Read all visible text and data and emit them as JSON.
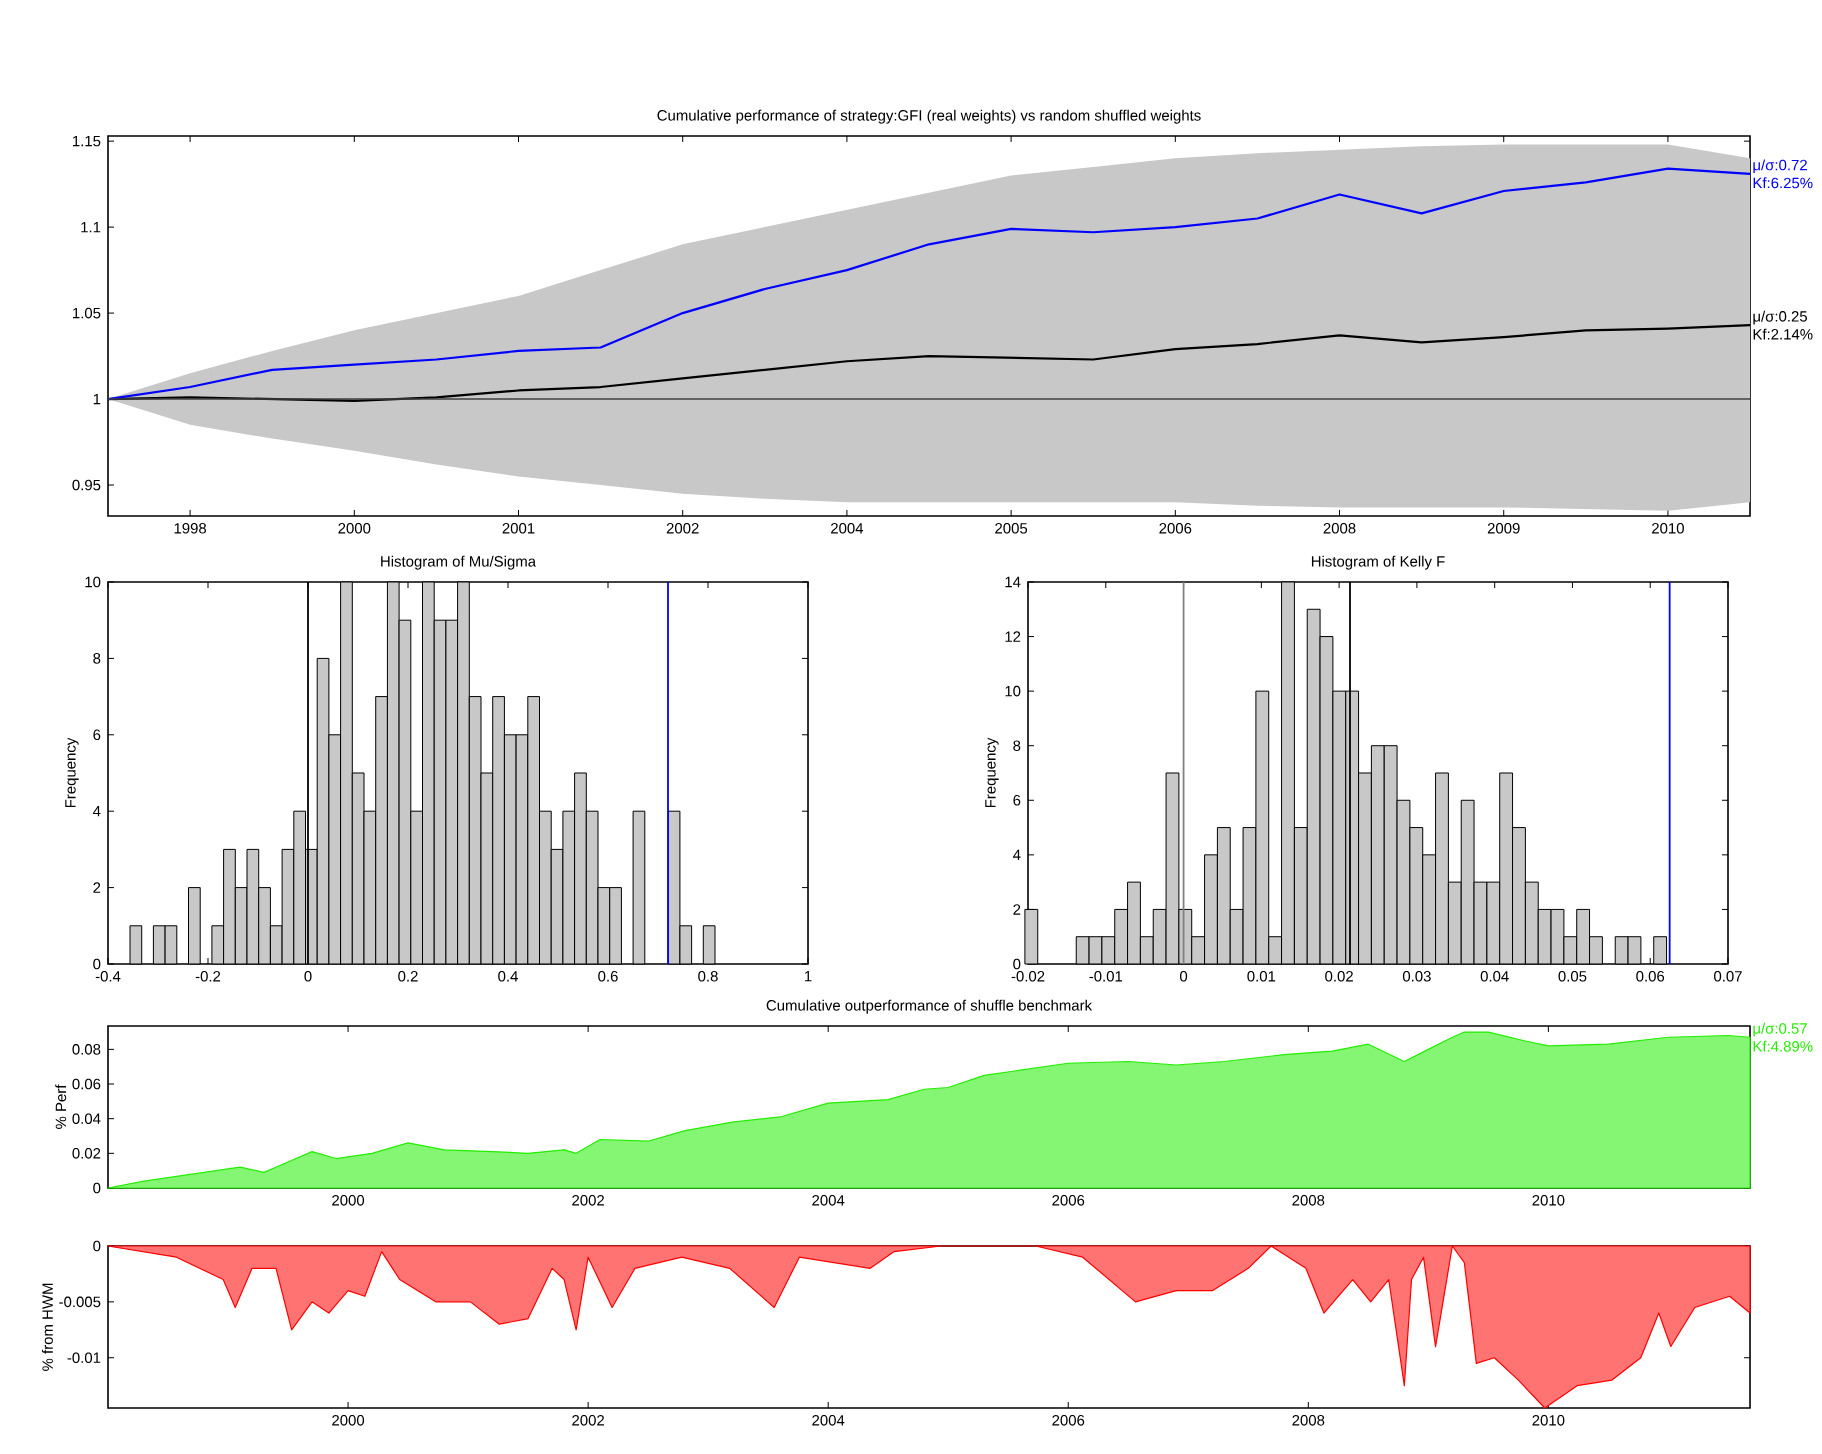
{
  "chart_data": [
    {
      "type": "line",
      "title": "Cumulative performance of strategy:GFI (real weights) vs random shuffled weights",
      "categories": [
        null,
        "1998",
        null,
        "2000",
        null,
        "2001",
        null,
        "2002",
        null,
        "2004",
        null,
        "2005",
        null,
        "2006",
        null,
        "2008",
        null,
        "2009",
        null,
        "2010",
        null
      ],
      "ylim": [
        0.932,
        1.153
      ],
      "yticks": [
        0.95,
        1,
        1.05,
        1.1,
        1.15
      ],
      "ref_lines": [
        {
          "axis": "y",
          "value": 1,
          "color": "#404040"
        }
      ],
      "series": [
        {
          "name": "μ/σ:0.25 Kf:2.14%",
          "color": "#000000",
          "values": [
            1.0,
            1.001,
            1.0,
            0.999,
            1.001,
            1.005,
            1.007,
            1.012,
            1.017,
            1.022,
            1.025,
            1.024,
            1.023,
            1.029,
            1.032,
            1.037,
            1.033,
            1.036,
            1.04,
            1.041,
            1.043
          ],
          "lower": [
            1.0,
            0.985,
            0.977,
            0.97,
            0.962,
            0.955,
            0.95,
            0.945,
            0.942,
            0.94,
            0.94,
            0.94,
            0.94,
            0.94,
            0.938,
            0.937,
            0.937,
            0.937,
            0.936,
            0.935,
            0.94
          ],
          "upper": [
            1.0,
            1.015,
            1.028,
            1.04,
            1.05,
            1.06,
            1.075,
            1.09,
            1.1,
            1.11,
            1.12,
            1.13,
            1.135,
            1.14,
            1.143,
            1.145,
            1.147,
            1.148,
            1.148,
            1.148,
            1.14
          ]
        },
        {
          "name": "μ/σ:0.72 Kf:6.25%",
          "color": "#0000ff",
          "values": [
            1.0,
            1.007,
            1.017,
            1.02,
            1.023,
            1.028,
            1.03,
            1.05,
            1.064,
            1.075,
            1.09,
            1.099,
            1.097,
            1.1,
            1.105,
            1.119,
            1.108,
            1.121,
            1.126,
            1.134,
            1.131
          ]
        }
      ]
    },
    {
      "type": "histogram",
      "title": "Histogram of Mu/Sigma",
      "ylabel": "Frequency",
      "xlim": [
        -0.4,
        1
      ],
      "ylim": [
        0,
        10
      ],
      "xticks": [
        -0.4,
        -0.2,
        0,
        0.2,
        0.4,
        0.6,
        0.8,
        1
      ],
      "yticks": [
        0,
        2,
        4,
        6,
        8,
        10
      ],
      "ref_lines": [
        {
          "axis": "x",
          "value": 0,
          "color": "#000000"
        },
        {
          "axis": "x",
          "value": 0.72,
          "color": "#0000ff"
        }
      ],
      "color": "#c8c8c8",
      "bins": [
        -0.356,
        -0.3326,
        -0.3092,
        -0.2858,
        -0.2624,
        -0.239,
        -0.2156,
        -0.1922,
        -0.1688,
        -0.1454,
        -0.122,
        -0.0986,
        -0.0752,
        -0.0518,
        -0.0284,
        -0.005,
        0.0184,
        0.0418,
        0.0652,
        0.0886,
        0.112,
        0.1354,
        0.1588,
        0.1822,
        0.2056,
        0.229,
        0.2524,
        0.2758,
        0.2992,
        0.3226,
        0.346,
        0.3694,
        0.3928,
        0.4162,
        0.4396,
        0.463,
        0.4864,
        0.5098,
        0.5332,
        0.5566,
        0.58,
        0.6034,
        0.6268,
        0.6502,
        0.6736,
        0.697,
        0.7204,
        0.7438,
        0.7672,
        0.7906,
        0.814
      ],
      "values": [
        1,
        0,
        1,
        1,
        0,
        2,
        0,
        1,
        3,
        2,
        3,
        2,
        1,
        3,
        4,
        3,
        8,
        6,
        10,
        5,
        4,
        7,
        10,
        9,
        4,
        10,
        9,
        9,
        10,
        7,
        5,
        7,
        6,
        6,
        7,
        4,
        3,
        4,
        5,
        4,
        2,
        2,
        0,
        4,
        0,
        0,
        4,
        1,
        0,
        1
      ]
    },
    {
      "type": "histogram",
      "title": "Histogram of Kelly F",
      "ylabel": "Frequency",
      "xlim": [
        -0.02,
        0.07
      ],
      "ylim": [
        0,
        14
      ],
      "xticks": [
        -0.02,
        -0.01,
        0,
        0.01,
        0.02,
        0.03,
        0.04,
        0.05,
        0.06,
        0.07
      ],
      "yticks": [
        0,
        2,
        4,
        6,
        8,
        10,
        12,
        14
      ],
      "ref_lines": [
        {
          "axis": "x",
          "value": 0,
          "color": "#808080"
        },
        {
          "axis": "x",
          "value": 0.0214,
          "color": "#000000"
        },
        {
          "axis": "x",
          "value": 0.0625,
          "color": "#0000ff"
        }
      ],
      "color": "#c8c8c8",
      "bins": [
        -0.0204,
        -0.01875,
        -0.0171,
        -0.01545,
        -0.0138,
        -0.01215,
        -0.0105,
        -0.00885,
        -0.0072,
        -0.00555,
        -0.0039,
        -0.00225,
        -0.0006,
        0.00105,
        0.0027,
        0.00435,
        0.006,
        0.00765,
        0.0093,
        0.01095,
        0.0126,
        0.01425,
        0.0159,
        0.01755,
        0.0192,
        0.02085,
        0.0225,
        0.02415,
        0.0258,
        0.02745,
        0.0291,
        0.03075,
        0.0324,
        0.03405,
        0.0357,
        0.03735,
        0.039,
        0.04065,
        0.0423,
        0.04395,
        0.0456,
        0.04725,
        0.0489,
        0.05055,
        0.0522,
        0.05385,
        0.0555,
        0.05715,
        0.0588,
        0.06045,
        0.0621
      ],
      "values": [
        2,
        0,
        0,
        0,
        1,
        1,
        1,
        2,
        3,
        1,
        2,
        7,
        2,
        1,
        4,
        5,
        2,
        5,
        10,
        1,
        14,
        5,
        13,
        12,
        10,
        10,
        7,
        8,
        8,
        6,
        5,
        4,
        7,
        3,
        6,
        3,
        3,
        7,
        5,
        3,
        2,
        2,
        1,
        2,
        1,
        0,
        1,
        1,
        0,
        1
      ]
    },
    {
      "type": "area",
      "title": "Cumulative outperformance of shuffle benchmark",
      "ylabel": "% Perf",
      "xlim": [
        1998.0,
        2011.68
      ],
      "ylim": [
        0,
        0.0935
      ],
      "xticks": [
        2000,
        2002,
        2004,
        2006,
        2008,
        2010
      ],
      "yticks": [
        0,
        0.02,
        0.04,
        0.06,
        0.08
      ],
      "series": [
        {
          "name": "μ/σ:0.57 Kf:4.89%",
          "color": "#22ee00",
          "x": [
            1998.0,
            1998.3,
            1998.8,
            1999.1,
            1999.3,
            1999.5,
            1999.7,
            1999.9,
            2000.2,
            2000.5,
            2000.8,
            2001.2,
            2001.5,
            2001.8,
            2001.9,
            2002.1,
            2002.5,
            2002.8,
            2003.2,
            2003.6,
            2003.8,
            2004.0,
            2004.5,
            2004.8,
            2005.0,
            2005.3,
            2005.6,
            2006.0,
            2006.5,
            2006.9,
            2007.3,
            2007.8,
            2008.2,
            2008.5,
            2008.8,
            2009.0,
            2009.2,
            2009.3,
            2009.5,
            2009.8,
            2010.0,
            2010.5,
            2011.0,
            2011.5,
            2011.68
          ],
          "values": [
            0,
            0.004,
            0.009,
            0.012,
            0.009,
            0.015,
            0.021,
            0.017,
            0.02,
            0.026,
            0.022,
            0.021,
            0.02,
            0.022,
            0.02,
            0.028,
            0.027,
            0.033,
            0.038,
            0.041,
            0.045,
            0.049,
            0.051,
            0.057,
            0.058,
            0.065,
            0.068,
            0.072,
            0.073,
            0.071,
            0.073,
            0.077,
            0.079,
            0.083,
            0.073,
            0.08,
            0.087,
            0.09,
            0.09,
            0.085,
            0.082,
            0.083,
            0.087,
            0.088,
            0.087
          ]
        }
      ]
    },
    {
      "type": "area",
      "ylabel": "% from HWM",
      "xlim": [
        1998.0,
        2011.68
      ],
      "ylim": [
        -0.0145,
        0
      ],
      "xticks": [
        2000,
        2002,
        2004,
        2006,
        2008,
        2010
      ],
      "yticks": [
        -0.01,
        -0.005,
        0
      ],
      "series": [
        {
          "color": "#ff0000",
          "x": [
            1998.0,
            1998.57,
            1998.96,
            1999.06,
            1999.2,
            1999.4,
            1999.53,
            1999.7,
            1999.84,
            2000.0,
            2000.14,
            2000.28,
            2000.43,
            2000.73,
            2001.02,
            2001.26,
            2001.5,
            2001.7,
            2001.8,
            2001.9,
            2002.0,
            2002.2,
            2002.39,
            2002.78,
            2003.18,
            2003.55,
            2003.76,
            2004.35,
            2004.55,
            2004.94,
            2005.73,
            2006.12,
            2006.56,
            2006.9,
            2007.2,
            2007.5,
            2007.69,
            2007.98,
            2008.13,
            2008.37,
            2008.52,
            2008.67,
            2008.8,
            2008.86,
            2008.96,
            2009.06,
            2009.2,
            2009.3,
            2009.4,
            2009.55,
            2009.75,
            2009.97,
            2010.24,
            2010.53,
            2010.77,
            2010.92,
            2011.02,
            2011.22,
            2011.51,
            2011.68
          ],
          "values": [
            0,
            -0.001,
            -0.003,
            -0.0055,
            -0.002,
            -0.002,
            -0.0075,
            -0.005,
            -0.006,
            -0.004,
            -0.0045,
            -0.0005,
            -0.003,
            -0.005,
            -0.005,
            -0.007,
            -0.0065,
            -0.002,
            -0.003,
            -0.0075,
            -0.001,
            -0.0055,
            -0.002,
            -0.001,
            -0.002,
            -0.0055,
            -0.001,
            -0.002,
            -0.0005,
            0,
            0,
            -0.001,
            -0.005,
            -0.004,
            -0.004,
            -0.002,
            0,
            -0.002,
            -0.006,
            -0.003,
            -0.005,
            -0.003,
            -0.0125,
            -0.003,
            -0.001,
            -0.009,
            0,
            -0.0015,
            -0.0105,
            -0.01,
            -0.012,
            -0.0145,
            -0.0125,
            -0.012,
            -0.01,
            -0.006,
            -0.009,
            -0.0055,
            -0.0045,
            -0.006
          ]
        }
      ]
    }
  ]
}
